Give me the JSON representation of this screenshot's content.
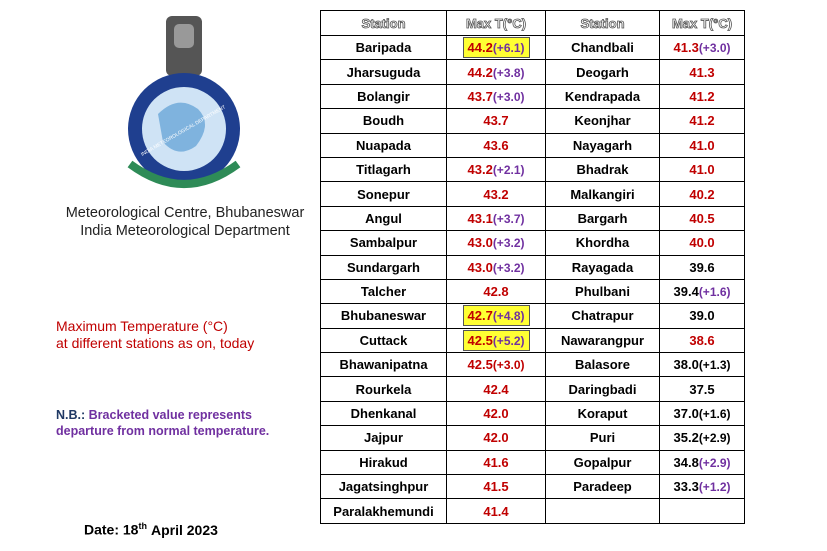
{
  "header": {
    "centre": "Meteorological Centre, Bhubaneswar",
    "department": "India Meteorological Department",
    "logo_text": "INDIA METEOROLOGICAL DEPARTMENT"
  },
  "caption": {
    "line1": "Maximum Temperature (°C)",
    "line2": "at different stations as on, today"
  },
  "note": {
    "label": "N.B.:",
    "text": "Bracketed value represents departure from normal temperature."
  },
  "date": {
    "prefix": "Date: 18",
    "sup": "th",
    "suffix": "April 2023"
  },
  "table": {
    "columns": [
      "Station",
      "Max T(°C)",
      "Station",
      "Max T(°C)"
    ],
    "rows": [
      [
        {
          "station": "Baripada",
          "max": "44.2",
          "dep": "(+6.1)",
          "color": "#c00000",
          "dep_color": "#7030a0",
          "highlight": true
        },
        {
          "station": "Chandbali",
          "max": "41.3",
          "dep": "(+3.0)",
          "color": "#c00000",
          "dep_color": "#7030a0"
        }
      ],
      [
        {
          "station": "Jharsuguda",
          "max": "44.2",
          "dep": "(+3.8)",
          "color": "#c00000",
          "dep_color": "#7030a0"
        },
        {
          "station": "Deogarh",
          "max": "41.3",
          "color": "#c00000"
        }
      ],
      [
        {
          "station": "Bolangir",
          "max": "43.7",
          "dep": "(+3.0)",
          "color": "#c00000",
          "dep_color": "#7030a0"
        },
        {
          "station": "Kendrapada",
          "max": "41.2",
          "color": "#c00000"
        }
      ],
      [
        {
          "station": "Boudh",
          "max": "43.7",
          "color": "#c00000"
        },
        {
          "station": "Keonjhar",
          "max": "41.2",
          "color": "#c00000"
        }
      ],
      [
        {
          "station": "Nuapada",
          "max": "43.6",
          "color": "#c00000"
        },
        {
          "station": "Nayagarh",
          "max": "41.0",
          "color": "#c00000"
        }
      ],
      [
        {
          "station": "Titlagarh",
          "max": "43.2",
          "dep": "(+2.1)",
          "color": "#c00000",
          "dep_color": "#7030a0"
        },
        {
          "station": "Bhadrak",
          "max": "41.0",
          "color": "#c00000"
        }
      ],
      [
        {
          "station": "Sonepur",
          "max": "43.2",
          "color": "#c00000"
        },
        {
          "station": "Malkangiri",
          "max": "40.2",
          "color": "#c00000"
        }
      ],
      [
        {
          "station": "Angul",
          "max": "43.1",
          "dep": "(+3.7)",
          "color": "#c00000",
          "dep_color": "#7030a0"
        },
        {
          "station": "Bargarh",
          "max": "40.5",
          "color": "#c00000"
        }
      ],
      [
        {
          "station": "Sambalpur",
          "max": "43.0",
          "dep": "(+3.2)",
          "color": "#c00000",
          "dep_color": "#7030a0"
        },
        {
          "station": "Khordha",
          "max": "40.0",
          "color": "#c00000"
        }
      ],
      [
        {
          "station": "Sundargarh",
          "max": "43.0",
          "dep": "(+3.2)",
          "color": "#c00000",
          "dep_color": "#7030a0"
        },
        {
          "station": "Rayagada",
          "max": "39.6",
          "color": "#000000"
        }
      ],
      [
        {
          "station": "Talcher",
          "max": "42.8",
          "color": "#c00000"
        },
        {
          "station": "Phulbani",
          "max": "39.4",
          "dep": "(+1.6)",
          "color": "#000000",
          "dep_color": "#7030a0"
        }
      ],
      [
        {
          "station": "Bhubaneswar",
          "max": "42.7",
          "dep": "(+4.8)",
          "color": "#c00000",
          "dep_color": "#7030a0",
          "highlight": true
        },
        {
          "station": "Chatrapur",
          "max": "39.0",
          "color": "#000000"
        }
      ],
      [
        {
          "station": "Cuttack",
          "max": "42.5",
          "dep": "(+5.2)",
          "color": "#c00000",
          "dep_color": "#7030a0",
          "highlight": true
        },
        {
          "station": "Nawarangpur",
          "max": "38.6",
          "color": "#c00000"
        }
      ],
      [
        {
          "station": "Bhawanipatna",
          "max": "42.5",
          "dep": "(+3.0)",
          "color": "#c00000",
          "dep_color": "#c00000"
        },
        {
          "station": "Balasore",
          "max": "38.0",
          "dep": "(+1.3)",
          "color": "#000000",
          "dep_color": "#000000"
        }
      ],
      [
        {
          "station": "Rourkela",
          "max": "42.4",
          "color": "#c00000"
        },
        {
          "station": "Daringbadi",
          "max": "37.5",
          "color": "#000000"
        }
      ],
      [
        {
          "station": "Dhenkanal",
          "max": "42.0",
          "color": "#c00000"
        },
        {
          "station": "Koraput",
          "max": "37.0",
          "dep": "(+1.6)",
          "color": "#000000",
          "dep_color": "#000000"
        }
      ],
      [
        {
          "station": "Jajpur",
          "max": "42.0",
          "color": "#c00000"
        },
        {
          "station": "Puri",
          "max": "35.2",
          "dep": "(+2.9)",
          "color": "#000000",
          "dep_color": "#000000"
        }
      ],
      [
        {
          "station": "Hirakud",
          "max": "41.6",
          "color": "#c00000"
        },
        {
          "station": "Gopalpur",
          "max": "34.8",
          "dep": "(+2.9)",
          "color": "#000000",
          "dep_color": "#7030a0"
        }
      ],
      [
        {
          "station": "Jagatsinghpur",
          "max": "41.5",
          "color": "#c00000"
        },
        {
          "station": "Paradeep",
          "max": "33.3",
          "dep": "(+1.2)",
          "color": "#000000",
          "dep_color": "#7030a0"
        }
      ],
      [
        {
          "station": "Paralakhemundi",
          "max": "41.4",
          "color": "#c00000"
        },
        null
      ]
    ]
  }
}
